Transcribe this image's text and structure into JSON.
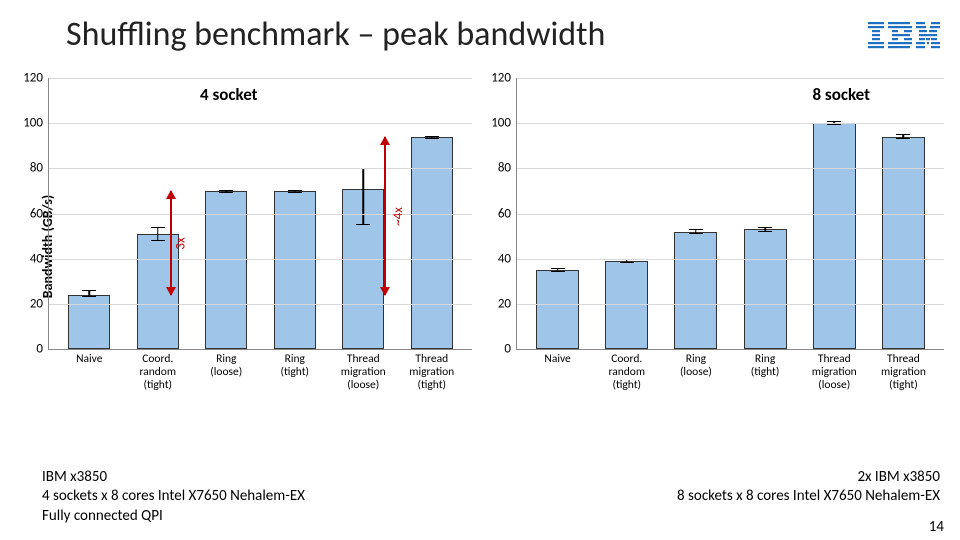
{
  "title": "Shuffling benchmark – peak bandwidth",
  "logo_color": "#1f70c1",
  "ylabel": "Bandwidth (GB/s)",
  "ylim": [
    0,
    120
  ],
  "ytick_step": 20,
  "bar_color": "#9fc5e8",
  "bar_border": "#333333",
  "grid_color": "#d9d9d9",
  "axis_color": "#888888",
  "title_fontsize": 34,
  "chart_title_fontsize": 17,
  "tick_fontsize": 13,
  "xlabel_fontsize": 11.5,
  "categories": [
    "Naive",
    "Coord. random (tight)",
    "Ring (loose)",
    "Ring (tight)",
    "Thread migration (loose)",
    "Thread migration (tight)"
  ],
  "left": {
    "title": "4 socket",
    "values": [
      24,
      51,
      70,
      70,
      71,
      94
    ],
    "err_lo": [
      23,
      48,
      69,
      69,
      55,
      93
    ],
    "err_hi": [
      26,
      54,
      70.5,
      70.5,
      80,
      94.5
    ],
    "annotations": [
      {
        "label": "3x",
        "from": 24,
        "to": 70,
        "x_cat": 1,
        "x_off": 0.72,
        "color": "#c00000"
      },
      {
        "label": "~4x",
        "from": 24,
        "to": 94,
        "x_cat": 4,
        "x_off": 0.75,
        "color": "#c00000"
      }
    ]
  },
  "right": {
    "title": "8 socket",
    "values": [
      35,
      39,
      52,
      53,
      100,
      94
    ],
    "err_lo": [
      34,
      38,
      51,
      52,
      99,
      93
    ],
    "err_hi": [
      36,
      40,
      53,
      54,
      101,
      95
    ],
    "annotations": []
  },
  "caption_left": [
    "IBM x3850",
    "4 sockets x 8 cores Intel X7650 Nehalem-EX",
    "Fully connected QPI"
  ],
  "caption_right": [
    "2x IBM x3850",
    "8 sockets x 8 cores Intel X7650 Nehalem-EX"
  ],
  "slide_num": "14"
}
